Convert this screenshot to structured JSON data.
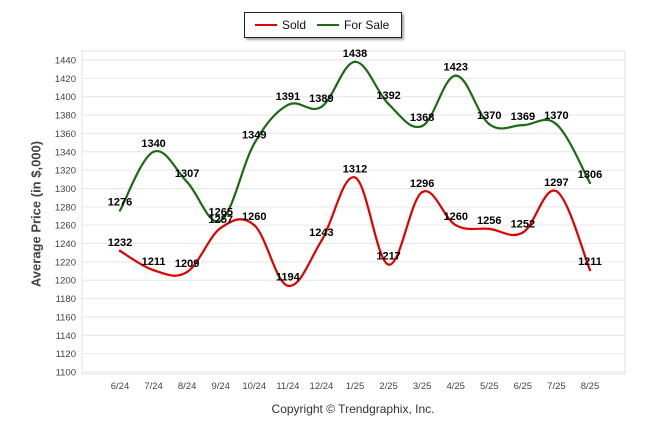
{
  "chart_data": {
    "type": "line",
    "categories": [
      "6/24",
      "7/24",
      "8/24",
      "9/24",
      "10/24",
      "11/24",
      "12/24",
      "1/25",
      "2/25",
      "3/25",
      "4/25",
      "5/25",
      "6/25",
      "7/25",
      "8/25"
    ],
    "series": [
      {
        "name": "Sold",
        "color": "#e00000",
        "values": [
          1232,
          1211,
          1209,
          1257,
          1260,
          1194,
          1243,
          1312,
          1217,
          1296,
          1260,
          1256,
          1252,
          1297,
          1211
        ]
      },
      {
        "name": "For Sale",
        "color": "#1a6b12",
        "values": [
          1276,
          1340,
          1307,
          1265,
          1349,
          1391,
          1389,
          1438,
          1392,
          1368,
          1423,
          1370,
          1369,
          1370,
          1306
        ]
      }
    ],
    "ylabel": "Average Price (in $,000)",
    "ylim": [
      1100,
      1440
    ],
    "yticks": [
      1100,
      1120,
      1140,
      1160,
      1180,
      1200,
      1220,
      1240,
      1260,
      1280,
      1300,
      1320,
      1340,
      1360,
      1380,
      1400,
      1420,
      1440
    ],
    "grid": true,
    "legend_position": "top-center"
  },
  "footer": {
    "copyright": "Copyright © Trendgraphix, Inc."
  }
}
